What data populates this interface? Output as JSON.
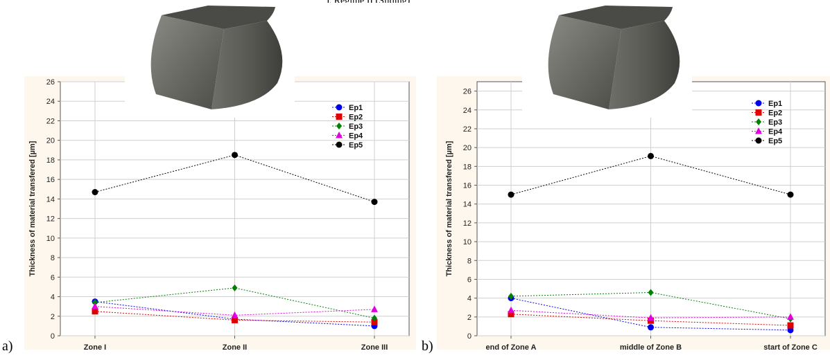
{
  "chart_data": [
    {
      "type": "line",
      "panel_label": "a)",
      "categories": [
        "Zone I",
        "Zone II",
        "Zone III"
      ],
      "ylabel": "Thickness of material transfered [µm]",
      "xlabel": "",
      "ylim": [
        0,
        26
      ],
      "yticks": [
        0,
        2,
        4,
        6,
        8,
        10,
        12,
        14,
        16,
        18,
        20,
        22,
        24,
        26
      ],
      "grid": true,
      "legend_position": "top-right",
      "series": [
        {
          "name": "Ep1",
          "marker": "circle",
          "color": "#0000ee",
          "values": [
            3.5,
            1.7,
            1.0
          ]
        },
        {
          "name": "Ep2",
          "marker": "square",
          "color": "#e00000",
          "values": [
            2.5,
            1.6,
            1.4
          ]
        },
        {
          "name": "Ep3",
          "marker": "diamond",
          "color": "#008000",
          "values": [
            3.4,
            4.9,
            1.8
          ]
        },
        {
          "name": "Ep4",
          "marker": "triangle",
          "color": "#e000e0",
          "values": [
            3.0,
            2.1,
            2.7
          ]
        },
        {
          "name": "Ep5",
          "marker": "circle",
          "color": "#000000",
          "values": [
            14.7,
            18.5,
            13.7
          ]
        }
      ]
    },
    {
      "type": "line",
      "panel_label": "b)",
      "categories": [
        "end of Zone A",
        "middle of Zone B",
        "start of Zone C"
      ],
      "ylabel": "Thickness of material transfered [µm]",
      "xlabel": "",
      "ylim": [
        0,
        27
      ],
      "yticks": [
        0,
        2,
        4,
        6,
        8,
        10,
        12,
        14,
        16,
        18,
        20,
        22,
        24,
        26
      ],
      "grid": true,
      "legend_position": "top-right",
      "series": [
        {
          "name": "Ep1",
          "marker": "circle",
          "color": "#0000ee",
          "values": [
            4.0,
            0.9,
            0.6
          ]
        },
        {
          "name": "Ep2",
          "marker": "square",
          "color": "#e00000",
          "values": [
            2.3,
            1.6,
            1.1
          ]
        },
        {
          "name": "Ep3",
          "marker": "diamond",
          "color": "#008000",
          "values": [
            4.2,
            4.6,
            1.8
          ]
        },
        {
          "name": "Ep4",
          "marker": "triangle",
          "color": "#e000e0",
          "values": [
            2.7,
            1.9,
            2.0
          ]
        },
        {
          "name": "Ep5",
          "marker": "circle",
          "color": "#000000",
          "values": [
            15.0,
            19.1,
            15.0
          ]
        }
      ]
    }
  ],
  "caption_fragment": "), Regime II (Sliding)"
}
